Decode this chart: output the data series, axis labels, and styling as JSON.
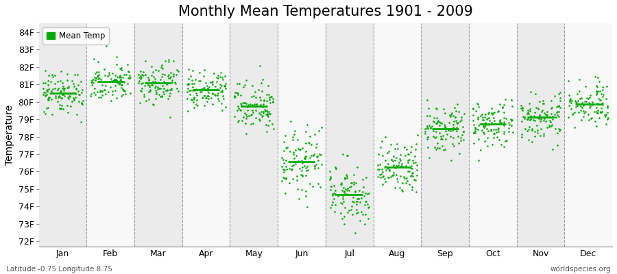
{
  "title": "Monthly Mean Temperatures 1901 - 2009",
  "ylabel": "Temperature",
  "xlabel_months": [
    "Jan",
    "Feb",
    "Mar",
    "Apr",
    "May",
    "Jun",
    "Jul",
    "Aug",
    "Sep",
    "Oct",
    "Nov",
    "Dec"
  ],
  "yticks": [
    72,
    73,
    74,
    75,
    76,
    77,
    78,
    79,
    80,
    81,
    82,
    83,
    84
  ],
  "ytick_labels": [
    "72F",
    "73F",
    "74F",
    "75F",
    "76F",
    "77F",
    "78F",
    "79F",
    "80F",
    "81F",
    "82F",
    "83F",
    "84F"
  ],
  "ylim": [
    71.7,
    84.5
  ],
  "dot_color": "#00AA00",
  "bg_color": "#FFFFFF",
  "bg_stripe_even": "#EBEBEB",
  "bg_stripe_odd": "#F8F8F8",
  "grid_color": "#999999",
  "title_fontsize": 15,
  "axis_fontsize": 10,
  "tick_fontsize": 9,
  "legend_label": "Mean Temp",
  "bottom_left": "Latitude -0.75 Longitude 8.75",
  "bottom_right": "worldspecies.org",
  "monthly_means": [
    80.55,
    81.1,
    81.05,
    80.65,
    79.9,
    76.55,
    74.75,
    76.15,
    78.35,
    78.65,
    79.05,
    79.85
  ],
  "monthly_std": [
    0.65,
    0.55,
    0.6,
    0.55,
    0.7,
    0.95,
    0.85,
    0.8,
    0.7,
    0.7,
    0.62,
    0.62
  ],
  "n_years": 109,
  "seed": 42
}
